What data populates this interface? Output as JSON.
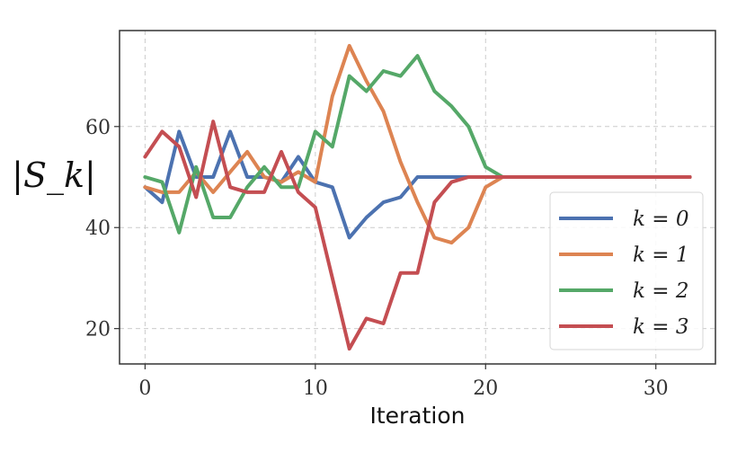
{
  "chart_data": {
    "type": "line",
    "xlabel": "Iteration",
    "ylabel": "|S_k|",
    "xlim": [
      -1.5,
      33.5
    ],
    "ylim": [
      13,
      79
    ],
    "xticks": [
      0,
      10,
      20,
      30
    ],
    "yticks": [
      20,
      40,
      60
    ],
    "grid": true,
    "legend_position": "lower-right",
    "series": [
      {
        "name": "k = 0",
        "color": "#4c72b0",
        "x": [
          0,
          1,
          2,
          3,
          4,
          5,
          6,
          7,
          8,
          9,
          10,
          11,
          12,
          13,
          14,
          15,
          16,
          17,
          18,
          19,
          20,
          21,
          22,
          23,
          24,
          25,
          26,
          27,
          28,
          29,
          30,
          31,
          32
        ],
        "values": [
          48,
          45,
          59,
          50,
          50,
          59,
          50,
          50,
          49,
          54,
          49,
          48,
          38,
          42,
          45,
          46,
          50,
          50,
          50,
          50,
          50,
          50,
          50,
          50,
          50,
          50,
          50,
          50,
          50,
          50,
          50,
          50,
          50
        ]
      },
      {
        "name": "k = 1",
        "color": "#dd8452",
        "x": [
          0,
          1,
          2,
          3,
          4,
          5,
          6,
          7,
          8,
          9,
          10,
          11,
          12,
          13,
          14,
          15,
          16,
          17,
          18,
          19,
          20,
          21,
          22,
          23,
          24,
          25,
          26,
          27,
          28,
          29,
          30,
          31,
          32
        ],
        "values": [
          48,
          47,
          47,
          51,
          47,
          51,
          55,
          50,
          49,
          51,
          49,
          66,
          76,
          69,
          63,
          53,
          45,
          38,
          37,
          40,
          48,
          50,
          50,
          50,
          50,
          50,
          50,
          50,
          50,
          50,
          50,
          50,
          50
        ]
      },
      {
        "name": "k = 2",
        "color": "#55a868",
        "x": [
          0,
          1,
          2,
          3,
          4,
          5,
          6,
          7,
          8,
          9,
          10,
          11,
          12,
          13,
          14,
          15,
          16,
          17,
          18,
          19,
          20,
          21
        ],
        "values": [
          50,
          49,
          39,
          52,
          42,
          42,
          48,
          52,
          48,
          48,
          59,
          56,
          70,
          67,
          71,
          70,
          74,
          67,
          64,
          60,
          52,
          50
        ]
      },
      {
        "name": "k = 3",
        "color": "#c44e52",
        "x": [
          0,
          1,
          2,
          3,
          4,
          5,
          6,
          7,
          8,
          9,
          10,
          11,
          12,
          13,
          14,
          15,
          16,
          17,
          18,
          19,
          20,
          21,
          22,
          23,
          24,
          25,
          26,
          27,
          28,
          29,
          30,
          31,
          32
        ],
        "values": [
          54,
          59,
          56,
          46,
          61,
          48,
          47,
          47,
          55,
          47,
          44,
          30,
          16,
          22,
          21,
          31,
          31,
          45,
          49,
          50,
          50,
          50,
          50,
          50,
          50,
          50,
          50,
          50,
          50,
          50,
          50,
          50,
          50
        ]
      }
    ]
  }
}
